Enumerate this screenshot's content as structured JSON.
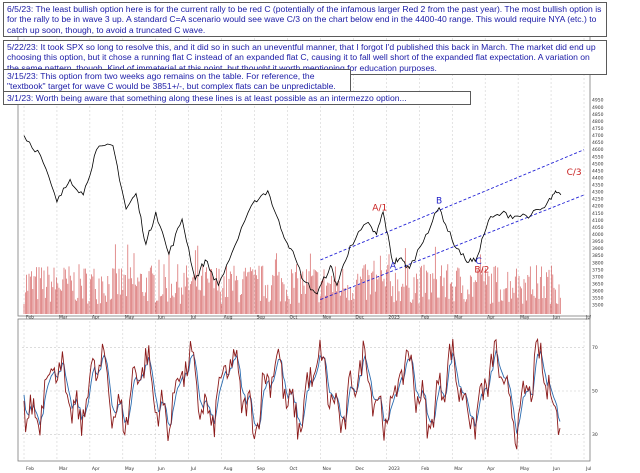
{
  "annotations": [
    {
      "date": "6/5/23:",
      "text": "The least bullish option here is for the current rally to be red C (potentially of the infamous larger Red 2 from the past year).  The most bullish option is for the rally to be in wave 3 up.  A standard C=A scenario would see wave C/3 on the chart below end in the 4400-40 range.  This would require NYA (etc.) to catch up soon, though, to avoid a truncated C wave."
    },
    {
      "date": "5/22/23:",
      "text": "It took SPX so long to resolve this, and it did so in such an uneventful manner, that I forgot I'd published this back in March.  The market did end up choosing this option, but it chose a running flat C instead of an expanded flat C, causing it to fall well short of the expanded flat expectation.  A variation on the same pattern, though.  Kind of immaterial at this point, but thought it worth mentioning for education purposes."
    },
    {
      "date": "3/15/23:",
      "text": "This option from two weeks ago remains on the table.  For reference, the \"textbook\" target for wave C would be 3851+/-, but complex flats can be unpredictable."
    },
    {
      "date": "3/1/23:",
      "text": "Worth being aware that something along these lines is at least possible as an intermezzo option..."
    }
  ],
  "colors": {
    "price": "#000000",
    "volume": "#c62828",
    "channel": "#2323d6",
    "wave_blue": "#2020c8",
    "wave_red": "#c81e1e",
    "osc_main": "#8b1a1a",
    "osc_signal": "#2b6cb0",
    "grid": "#c8c8c8",
    "note_text": "#1a1aa6"
  },
  "chart_data": {
    "type": "line",
    "x_ticks": [
      "Feb",
      "Mar",
      "Apr",
      "May",
      "Jun",
      "Jul",
      "Aug",
      "Sep",
      "Oct",
      "Nov",
      "Dec",
      "2023",
      "Feb",
      "Mar",
      "Apr",
      "May",
      "Jun",
      "Jul"
    ],
    "price_ticks": [
      3500,
      3550,
      3600,
      3650,
      3700,
      3750,
      3800,
      3850,
      3900,
      3950,
      4000,
      4050,
      4100,
      4150,
      4200,
      4250,
      4300,
      4350,
      4400,
      4450,
      4500,
      4550,
      4600,
      4650,
      4700,
      4750,
      4800,
      4850,
      4900,
      4950
    ],
    "price_ylim": [
      3480,
      4980
    ],
    "price_series": [
      {
        "x": 0.0,
        "y": 4700
      },
      {
        "x": 0.5,
        "y": 4560
      },
      {
        "x": 1.0,
        "y": 4230
      },
      {
        "x": 1.4,
        "y": 4390
      },
      {
        "x": 1.8,
        "y": 4280
      },
      {
        "x": 2.2,
        "y": 4600
      },
      {
        "x": 2.7,
        "y": 4630
      },
      {
        "x": 3.1,
        "y": 4180
      },
      {
        "x": 3.4,
        "y": 4290
      },
      {
        "x": 3.7,
        "y": 3930
      },
      {
        "x": 4.0,
        "y": 4160
      },
      {
        "x": 4.4,
        "y": 3860
      },
      {
        "x": 4.8,
        "y": 4110
      },
      {
        "x": 5.2,
        "y": 3680
      },
      {
        "x": 5.5,
        "y": 3820
      },
      {
        "x": 5.9,
        "y": 3640
      },
      {
        "x": 6.4,
        "y": 3920
      },
      {
        "x": 7.0,
        "y": 4240
      },
      {
        "x": 7.4,
        "y": 4310
      },
      {
        "x": 7.8,
        "y": 4040
      },
      {
        "x": 8.1,
        "y": 3900
      },
      {
        "x": 8.5,
        "y": 3670
      },
      {
        "x": 8.9,
        "y": 3580
      },
      {
        "x": 9.3,
        "y": 3780
      },
      {
        "x": 9.5,
        "y": 3640
      },
      {
        "x": 9.9,
        "y": 3920
      },
      {
        "x": 10.4,
        "y": 4080
      },
      {
        "x": 10.7,
        "y": 4000
      },
      {
        "x": 10.9,
        "y": 4160
      },
      {
        "x": 11.2,
        "y": 3800
      },
      {
        "x": 11.4,
        "y": 3830
      },
      {
        "x": 11.7,
        "y": 3760
      },
      {
        "x": 12.2,
        "y": 4000
      },
      {
        "x": 12.6,
        "y": 4190
      },
      {
        "x": 13.0,
        "y": 3960
      },
      {
        "x": 13.4,
        "y": 3820
      },
      {
        "x": 13.7,
        "y": 3810
      },
      {
        "x": 14.1,
        "y": 4100
      },
      {
        "x": 14.5,
        "y": 4150
      },
      {
        "x": 14.9,
        "y": 4130
      },
      {
        "x": 15.4,
        "y": 4140
      },
      {
        "x": 15.8,
        "y": 4190
      },
      {
        "x": 16.1,
        "y": 4290
      },
      {
        "x": 16.3,
        "y": 4280
      }
    ],
    "channel_lines": [
      {
        "name": "upper",
        "x": [
          9.0,
          17.0
        ],
        "y": [
          3820,
          4600
        ]
      },
      {
        "name": "lower",
        "x": [
          9.0,
          17.0
        ],
        "y": [
          3540,
          4280
        ]
      }
    ],
    "wave_labels": [
      {
        "text": "A/1",
        "x": 10.8,
        "y": 4170,
        "color": "red"
      },
      {
        "text": "B",
        "x": 12.6,
        "y": 4220,
        "color": "blue"
      },
      {
        "text": "A",
        "x": 11.2,
        "y": 3760,
        "color": "blue"
      },
      {
        "text": "C",
        "x": 13.8,
        "y": 3790,
        "color": "blue"
      },
      {
        "text": "B/2",
        "x": 13.9,
        "y": 3730,
        "color": "red"
      },
      {
        "text": "C/3",
        "x": 16.7,
        "y": 4420,
        "color": "red"
      }
    ],
    "oscillator_ticks": [
      70,
      50,
      30
    ],
    "oscillator_ylim": [
      20,
      80
    ]
  }
}
